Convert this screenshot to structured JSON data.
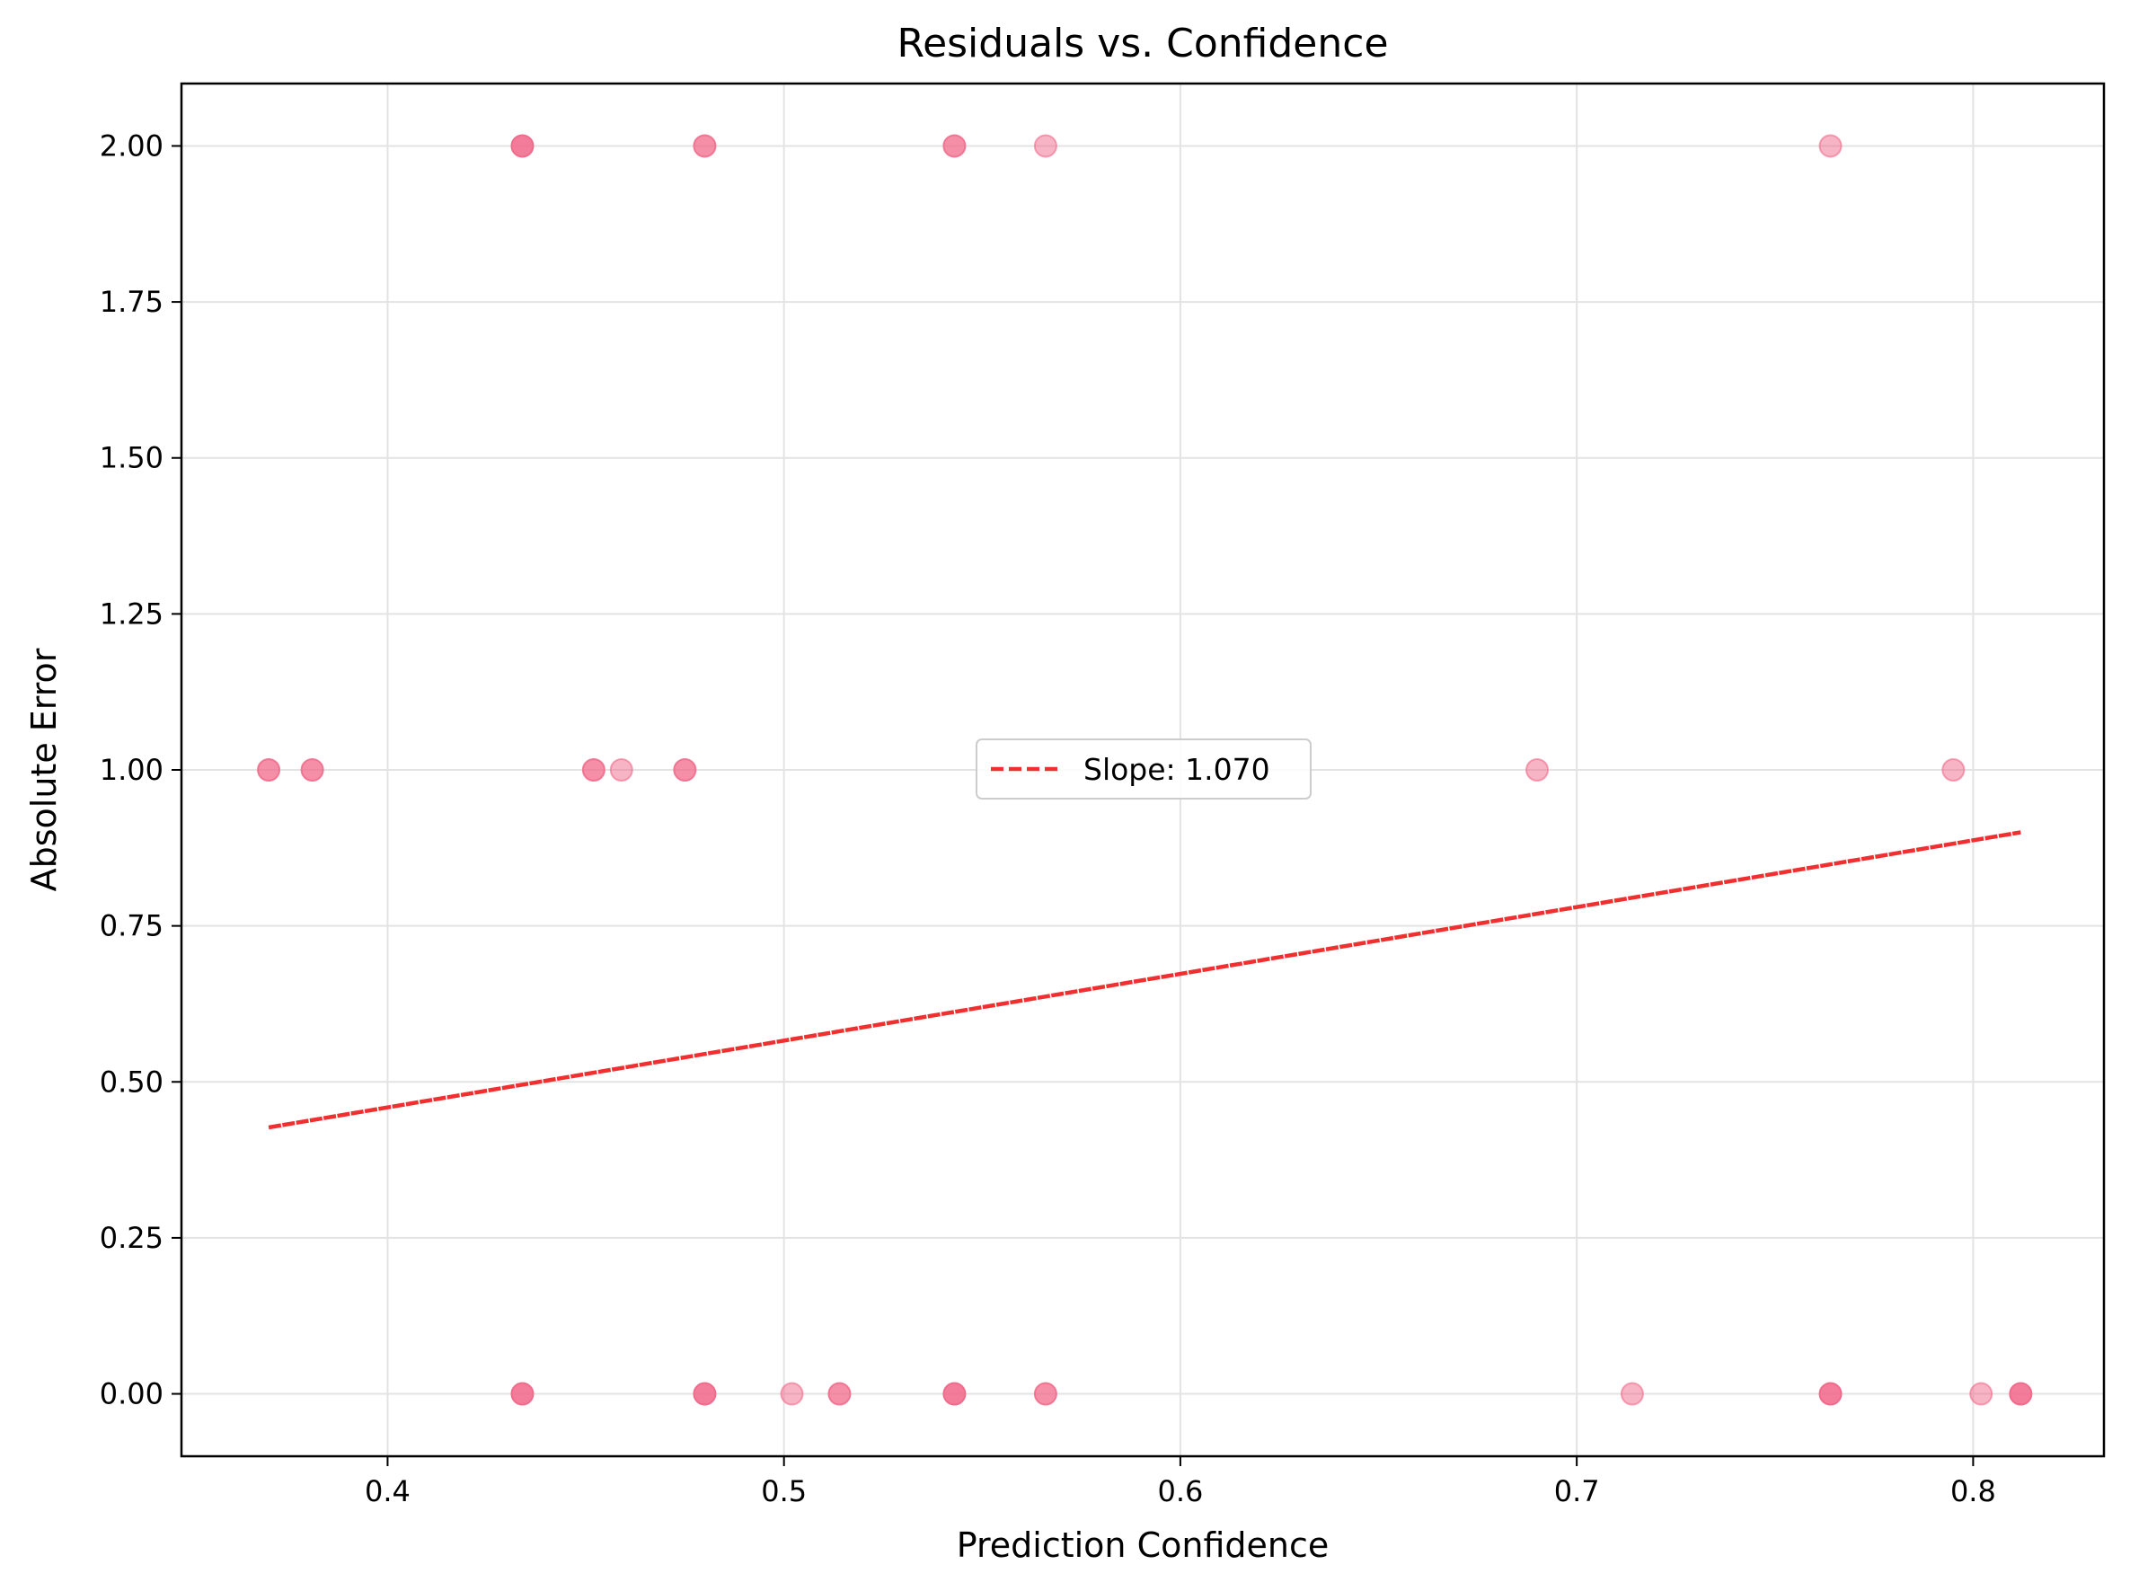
{
  "chart_data": {
    "type": "scatter",
    "title": "Residuals vs. Confidence",
    "xlabel": "Prediction Confidence",
    "ylabel": "Absolute Error",
    "xlim": [
      0.348,
      0.833
    ],
    "ylim": [
      -0.1,
      2.1
    ],
    "x_ticks": [
      0.4,
      0.5,
      0.6,
      0.7,
      0.8
    ],
    "x_tick_labels": [
      "0.4",
      "0.5",
      "0.6",
      "0.7",
      "0.8"
    ],
    "y_ticks": [
      0.0,
      0.25,
      0.5,
      0.75,
      1.0,
      1.25,
      1.5,
      1.75,
      2.0
    ],
    "y_tick_labels": [
      "0.00",
      "0.25",
      "0.50",
      "0.75",
      "1.00",
      "1.25",
      "1.50",
      "1.75",
      "2.00"
    ],
    "grid": true,
    "legend_position": "center",
    "colors": {
      "points": "#f0698a",
      "trend": "#f03030"
    },
    "points": [
      {
        "x": 0.434,
        "y": 2.0,
        "count": 3
      },
      {
        "x": 0.48,
        "y": 2.0,
        "count": 2
      },
      {
        "x": 0.543,
        "y": 2.0,
        "count": 2
      },
      {
        "x": 0.566,
        "y": 2.0,
        "count": 1
      },
      {
        "x": 0.764,
        "y": 2.0,
        "count": 1
      },
      {
        "x": 0.37,
        "y": 1.0,
        "count": 2
      },
      {
        "x": 0.381,
        "y": 1.0,
        "count": 2
      },
      {
        "x": 0.452,
        "y": 1.0,
        "count": 2
      },
      {
        "x": 0.459,
        "y": 1.0,
        "count": 1
      },
      {
        "x": 0.475,
        "y": 1.0,
        "count": 2
      },
      {
        "x": 0.69,
        "y": 1.0,
        "count": 1
      },
      {
        "x": 0.795,
        "y": 1.0,
        "count": 1
      },
      {
        "x": 0.434,
        "y": 0.0,
        "count": 3
      },
      {
        "x": 0.48,
        "y": 0.0,
        "count": 3
      },
      {
        "x": 0.502,
        "y": 0.0,
        "count": 1
      },
      {
        "x": 0.514,
        "y": 0.0,
        "count": 2
      },
      {
        "x": 0.543,
        "y": 0.0,
        "count": 3
      },
      {
        "x": 0.566,
        "y": 0.0,
        "count": 2
      },
      {
        "x": 0.714,
        "y": 0.0,
        "count": 1
      },
      {
        "x": 0.764,
        "y": 0.0,
        "count": 3
      },
      {
        "x": 0.802,
        "y": 0.0,
        "count": 1
      },
      {
        "x": 0.812,
        "y": 0.0,
        "count": 3
      }
    ],
    "trend_line": {
      "name": "Slope: 1.070",
      "slope": 1.07,
      "x": [
        0.37,
        0.812
      ],
      "y": [
        0.427,
        0.9
      ]
    }
  }
}
